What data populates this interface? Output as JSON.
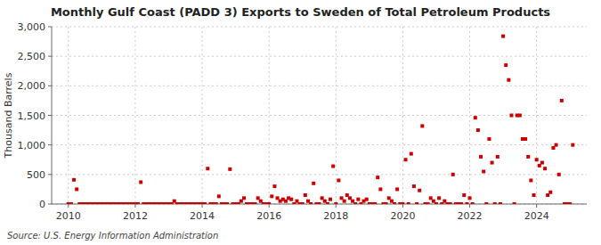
{
  "chart_data": {
    "type": "scatter",
    "title": "Monthly Gulf Coast (PADD 3) Exports to Sweden of Total Petroleum Products",
    "y_label": "Thousand Barrels",
    "annotations": [
      "Source: U.S. Energy Information Administration"
    ],
    "color": "#cc0000",
    "marker": "square",
    "grid": true,
    "xlim": [
      2009.5,
      2025.5
    ],
    "xticks": [
      2010,
      2012,
      2014,
      2016,
      2018,
      2020,
      2022,
      2024
    ],
    "ylim": [
      0,
      3000
    ],
    "yticks": [
      0,
      500,
      {
        "value": 1000,
        "label": "1,000"
      },
      {
        "value": 1500,
        "label": "1,500"
      },
      {
        "value": 2000,
        "label": "2,000"
      },
      {
        "value": 2500,
        "label": "2,500"
      },
      {
        "value": 3000,
        "label": "3,000"
      }
    ],
    "x": [
      2010.0,
      2010.083,
      2010.167,
      2010.25,
      2010.333,
      2010.417,
      2010.5,
      2010.583,
      2010.667,
      2010.75,
      2010.833,
      2010.917,
      2011.0,
      2011.083,
      2011.167,
      2011.25,
      2011.333,
      2011.417,
      2011.5,
      2011.583,
      2011.667,
      2011.75,
      2011.833,
      2011.917,
      2012.0,
      2012.083,
      2012.167,
      2012.25,
      2012.333,
      2012.417,
      2012.5,
      2012.583,
      2012.667,
      2012.75,
      2012.833,
      2012.917,
      2013.0,
      2013.083,
      2013.167,
      2013.25,
      2013.333,
      2013.417,
      2013.5,
      2013.583,
      2013.667,
      2013.75,
      2013.833,
      2013.917,
      2014.0,
      2014.083,
      2014.167,
      2014.25,
      2014.333,
      2014.417,
      2014.5,
      2014.583,
      2014.667,
      2014.75,
      2014.833,
      2014.917,
      2015.0,
      2015.083,
      2015.167,
      2015.25,
      2015.333,
      2015.417,
      2015.5,
      2015.583,
      2015.667,
      2015.75,
      2015.833,
      2015.917,
      2016.0,
      2016.083,
      2016.167,
      2016.25,
      2016.333,
      2016.417,
      2016.5,
      2016.583,
      2016.667,
      2016.75,
      2016.833,
      2016.917,
      2017.0,
      2017.083,
      2017.167,
      2017.25,
      2017.333,
      2017.417,
      2017.5,
      2017.583,
      2017.667,
      2017.75,
      2017.833,
      2017.917,
      2018.0,
      2018.083,
      2018.167,
      2018.25,
      2018.333,
      2018.417,
      2018.5,
      2018.583,
      2018.667,
      2018.75,
      2018.833,
      2018.917,
      2019.0,
      2019.083,
      2019.167,
      2019.25,
      2019.333,
      2019.417,
      2019.5,
      2019.583,
      2019.667,
      2019.75,
      2019.833,
      2019.917,
      2020.0,
      2020.083,
      2020.167,
      2020.25,
      2020.333,
      2020.417,
      2020.5,
      2020.583,
      2020.667,
      2020.75,
      2020.833,
      2020.917,
      2021.0,
      2021.083,
      2021.167,
      2021.25,
      2021.333,
      2021.417,
      2021.5,
      2021.583,
      2021.667,
      2021.75,
      2021.833,
      2021.917,
      2022.0,
      2022.083,
      2022.167,
      2022.25,
      2022.333,
      2022.417,
      2022.5,
      2022.583,
      2022.667,
      2022.75,
      2022.833,
      2022.917,
      2023.0,
      2023.083,
      2023.167,
      2023.25,
      2023.333,
      2023.417,
      2023.5,
      2023.583,
      2023.667,
      2023.75,
      2023.833,
      2023.917,
      2024.0,
      2024.083,
      2024.167,
      2024.25,
      2024.333,
      2024.417,
      2024.5,
      2024.583,
      2024.667,
      2024.75,
      2024.833,
      2024.917,
      2025.0,
      2025.083
    ],
    "values": [
      0,
      0,
      410,
      250,
      0,
      0,
      0,
      0,
      0,
      0,
      0,
      0,
      0,
      0,
      0,
      0,
      0,
      0,
      0,
      0,
      0,
      0,
      0,
      0,
      0,
      0,
      370,
      0,
      0,
      0,
      0,
      0,
      0,
      0,
      0,
      0,
      0,
      0,
      50,
      0,
      0,
      0,
      0,
      0,
      0,
      0,
      0,
      0,
      0,
      0,
      600,
      0,
      0,
      0,
      130,
      0,
      0,
      0,
      590,
      0,
      0,
      0,
      50,
      100,
      0,
      0,
      0,
      0,
      100,
      50,
      0,
      0,
      0,
      130,
      300,
      100,
      50,
      80,
      50,
      100,
      80,
      0,
      50,
      0,
      0,
      150,
      50,
      0,
      350,
      0,
      0,
      100,
      50,
      0,
      80,
      640,
      0,
      400,
      100,
      50,
      150,
      100,
      50,
      0,
      80,
      0,
      50,
      80,
      0,
      0,
      0,
      450,
      250,
      0,
      0,
      100,
      50,
      0,
      250,
      0,
      0,
      750,
      0,
      850,
      300,
      0,
      230,
      1320,
      0,
      0,
      100,
      50,
      0,
      100,
      0,
      50,
      0,
      0,
      500,
      0,
      0,
      0,
      150,
      0,
      100,
      0,
      1460,
      1250,
      800,
      550,
      0,
      1100,
      700,
      0,
      800,
      0,
      2840,
      2350,
      2100,
      1500,
      0,
      1500,
      1500,
      1100,
      1100,
      800,
      400,
      150,
      750,
      650,
      700,
      600,
      150,
      200,
      950,
      1000,
      500,
      1750,
      0,
      0,
      0,
      1000
    ]
  }
}
